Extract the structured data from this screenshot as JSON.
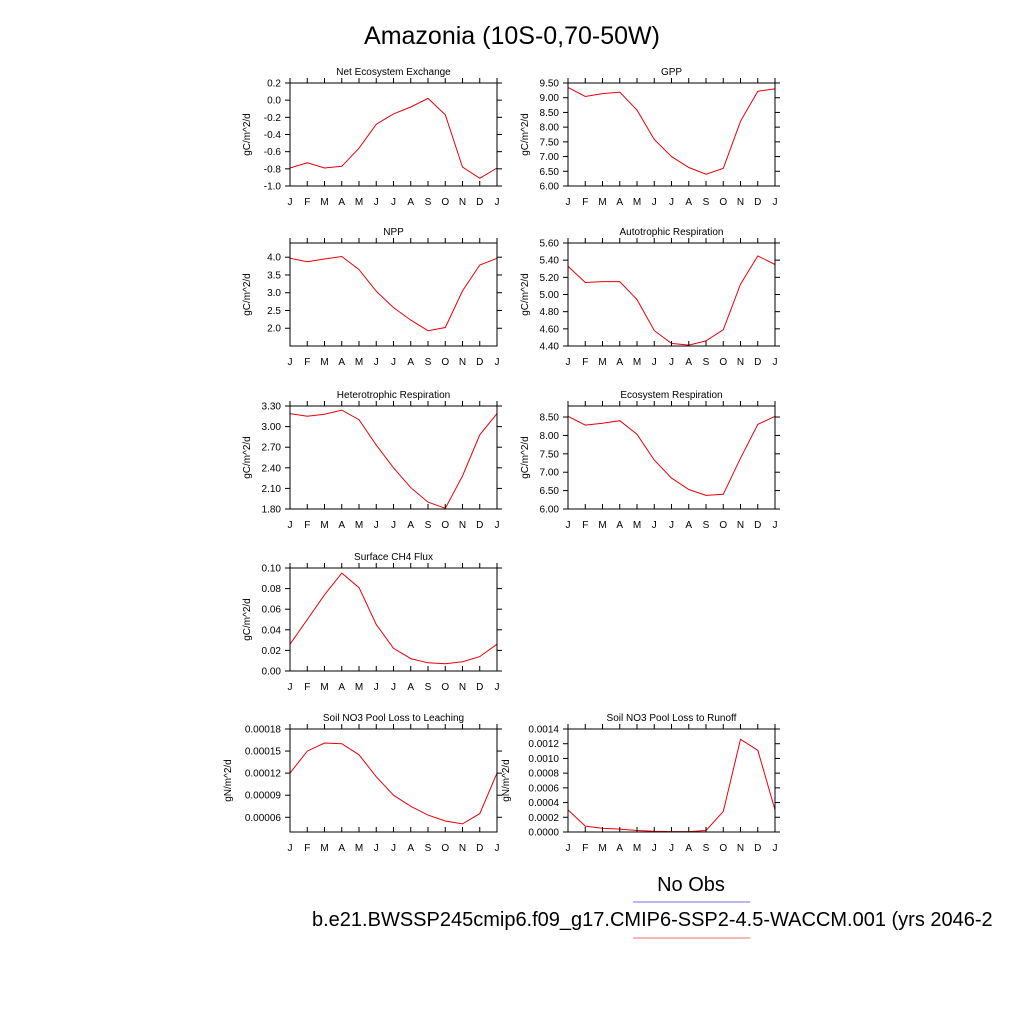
{
  "figure": {
    "title": "Amazonia (10S-0,70-50W)",
    "legend": {
      "obs_label": "No Obs",
      "obs_color": "#8c8cf0",
      "case_label": "b.e21.BWSSP245cmip6.f09_g17.CMIP6-SSP2-4.5-WACCM.001 (yrs 2046-2",
      "case_color": "#f08c8c"
    }
  },
  "chart_data": [
    {
      "type": "line",
      "title": "Net Ecosystem Exchange",
      "xlabel": "",
      "ylabel": "gC/m^2/d",
      "categories": [
        "J",
        "F",
        "M",
        "A",
        "M",
        "J",
        "J",
        "A",
        "S",
        "O",
        "N",
        "D",
        "J"
      ],
      "ylim": [
        -1.0,
        0.2
      ],
      "yticks": [
        -1.0,
        -0.8,
        -0.6,
        -0.4,
        -0.2,
        0.0,
        0.2
      ],
      "ytick_labels": [
        "-1.0",
        "-0.8",
        "-0.6",
        "-0.4",
        "-0.2",
        "0.0",
        "0.2"
      ],
      "series": [
        {
          "color": "#e8000b",
          "values": [
            -0.79,
            -0.73,
            -0.79,
            -0.77,
            -0.56,
            -0.28,
            -0.16,
            -0.08,
            0.02,
            -0.17,
            -0.78,
            -0.91,
            -0.79
          ]
        }
      ]
    },
    {
      "type": "line",
      "title": "GPP",
      "xlabel": "",
      "ylabel": "gC/m^2/d",
      "categories": [
        "J",
        "F",
        "M",
        "A",
        "M",
        "J",
        "J",
        "A",
        "S",
        "O",
        "N",
        "D",
        "J"
      ],
      "ylim": [
        6.0,
        9.5
      ],
      "yticks": [
        6.0,
        6.5,
        7.0,
        7.5,
        8.0,
        8.5,
        9.0,
        9.5
      ],
      "ytick_labels": [
        "6.00",
        "6.50",
        "7.00",
        "7.50",
        "8.00",
        "8.50",
        "9.00",
        "9.50"
      ],
      "series": [
        {
          "color": "#e8000b",
          "values": [
            9.35,
            9.04,
            9.14,
            9.19,
            8.58,
            7.58,
            7.0,
            6.63,
            6.4,
            6.6,
            8.2,
            9.22,
            9.3
          ]
        }
      ]
    },
    {
      "type": "line",
      "title": "NPP",
      "xlabel": "",
      "ylabel": "gC/m^2/d",
      "categories": [
        "J",
        "F",
        "M",
        "A",
        "M",
        "J",
        "J",
        "A",
        "S",
        "O",
        "N",
        "D",
        "J"
      ],
      "ylim": [
        1.5,
        4.4
      ],
      "yticks": [
        2.0,
        2.5,
        3.0,
        3.5,
        4.0
      ],
      "ytick_labels": [
        "2.0",
        "2.5",
        "3.0",
        "3.5",
        "4.0"
      ],
      "series": [
        {
          "color": "#e8000b",
          "values": [
            3.97,
            3.87,
            3.95,
            4.02,
            3.65,
            3.04,
            2.58,
            2.23,
            1.93,
            2.02,
            3.05,
            3.78,
            3.97
          ]
        }
      ]
    },
    {
      "type": "line",
      "title": "Autotrophic Respiration",
      "xlabel": "",
      "ylabel": "gC/m^2/d",
      "categories": [
        "J",
        "F",
        "M",
        "A",
        "M",
        "J",
        "J",
        "A",
        "S",
        "O",
        "N",
        "D",
        "J"
      ],
      "ylim": [
        4.4,
        5.6
      ],
      "yticks": [
        4.4,
        4.6,
        4.8,
        5.0,
        5.2,
        5.4,
        5.6
      ],
      "ytick_labels": [
        "4.40",
        "4.60",
        "4.80",
        "5.00",
        "5.20",
        "5.40",
        "5.60"
      ],
      "series": [
        {
          "color": "#e8000b",
          "values": [
            5.33,
            5.14,
            5.15,
            5.15,
            4.94,
            4.58,
            4.43,
            4.41,
            4.46,
            4.59,
            5.12,
            5.45,
            5.35
          ]
        }
      ]
    },
    {
      "type": "line",
      "title": "Heterotrophic Respiration",
      "xlabel": "",
      "ylabel": "gC/m^2/d",
      "categories": [
        "J",
        "F",
        "M",
        "A",
        "M",
        "J",
        "J",
        "A",
        "S",
        "O",
        "N",
        "D",
        "J"
      ],
      "ylim": [
        1.8,
        3.3
      ],
      "yticks": [
        1.8,
        2.1,
        2.4,
        2.7,
        3.0,
        3.3
      ],
      "ytick_labels": [
        "1.80",
        "2.10",
        "2.40",
        "2.70",
        "3.00",
        "3.30"
      ],
      "series": [
        {
          "color": "#e8000b",
          "values": [
            3.19,
            3.15,
            3.18,
            3.24,
            3.1,
            2.73,
            2.4,
            2.11,
            1.9,
            1.81,
            2.28,
            2.88,
            3.19
          ]
        }
      ]
    },
    {
      "type": "line",
      "title": "Ecosystem Respiration",
      "xlabel": "",
      "ylabel": "gC/m^2/d",
      "categories": [
        "J",
        "F",
        "M",
        "A",
        "M",
        "J",
        "J",
        "A",
        "S",
        "O",
        "N",
        "D",
        "J"
      ],
      "ylim": [
        6.0,
        8.8
      ],
      "yticks": [
        6.0,
        6.5,
        7.0,
        7.5,
        8.0,
        8.5
      ],
      "ytick_labels": [
        "6.00",
        "6.50",
        "7.00",
        "7.50",
        "8.00",
        "8.50"
      ],
      "series": [
        {
          "color": "#e8000b",
          "values": [
            8.52,
            8.28,
            8.33,
            8.4,
            8.03,
            7.33,
            6.84,
            6.53,
            6.37,
            6.4,
            7.38,
            8.3,
            8.52
          ]
        }
      ]
    },
    {
      "type": "line",
      "title": "Surface CH4 Flux",
      "xlabel": "",
      "ylabel": "gC/m^2/d",
      "categories": [
        "J",
        "F",
        "M",
        "A",
        "M",
        "J",
        "J",
        "A",
        "S",
        "O",
        "N",
        "D",
        "J"
      ],
      "ylim": [
        0.0,
        0.1
      ],
      "yticks": [
        0.0,
        0.02,
        0.04,
        0.06,
        0.08,
        0.1
      ],
      "ytick_labels": [
        "0.00",
        "0.02",
        "0.04",
        "0.06",
        "0.08",
        "0.10"
      ],
      "series": [
        {
          "color": "#e8000b",
          "values": [
            0.026,
            0.05,
            0.074,
            0.095,
            0.081,
            0.045,
            0.022,
            0.012,
            0.008,
            0.007,
            0.009,
            0.014,
            0.026
          ]
        }
      ]
    },
    {
      "type": "line",
      "title": "Soil NO3 Pool Loss to Leaching",
      "xlabel": "",
      "ylabel": "gN/m^2/d",
      "categories": [
        "J",
        "F",
        "M",
        "A",
        "M",
        "J",
        "J",
        "A",
        "S",
        "O",
        "N",
        "D",
        "J"
      ],
      "ylim": [
        4e-05,
        0.00018
      ],
      "yticks": [
        6e-05,
        9e-05,
        0.00012,
        0.00015,
        0.00018
      ],
      "ytick_labels": [
        "0.00006",
        "0.00009",
        "0.00012",
        "0.00015",
        "0.00018"
      ],
      "series": [
        {
          "color": "#e8000b",
          "values": [
            0.00012,
            0.00015,
            0.000161,
            0.00016,
            0.000145,
            0.000115,
            9e-05,
            7.5e-05,
            6.3e-05,
            5.5e-05,
            5.1e-05,
            6.5e-05,
            0.00012
          ]
        }
      ]
    },
    {
      "type": "line",
      "title": "Soil NO3 Pool Loss to Runoff",
      "xlabel": "",
      "ylabel": "gN/m^2/d",
      "categories": [
        "J",
        "F",
        "M",
        "A",
        "M",
        "J",
        "J",
        "A",
        "S",
        "O",
        "N",
        "D",
        "J"
      ],
      "ylim": [
        0.0,
        0.0014
      ],
      "yticks": [
        0.0,
        0.0002,
        0.0004,
        0.0006,
        0.0008,
        0.001,
        0.0012,
        0.0014
      ],
      "ytick_labels": [
        "0.0000",
        "0.0002",
        "0.0004",
        "0.0006",
        "0.0008",
        "0.0010",
        "0.0012",
        "0.0014"
      ],
      "series": [
        {
          "color": "#e8000b",
          "values": [
            0.0003,
            8e-05,
            5e-05,
            4e-05,
            2e-05,
            1e-05,
            5e-06,
            5e-06,
            2e-05,
            0.00028,
            0.00126,
            0.00111,
            0.0003
          ]
        }
      ]
    }
  ]
}
